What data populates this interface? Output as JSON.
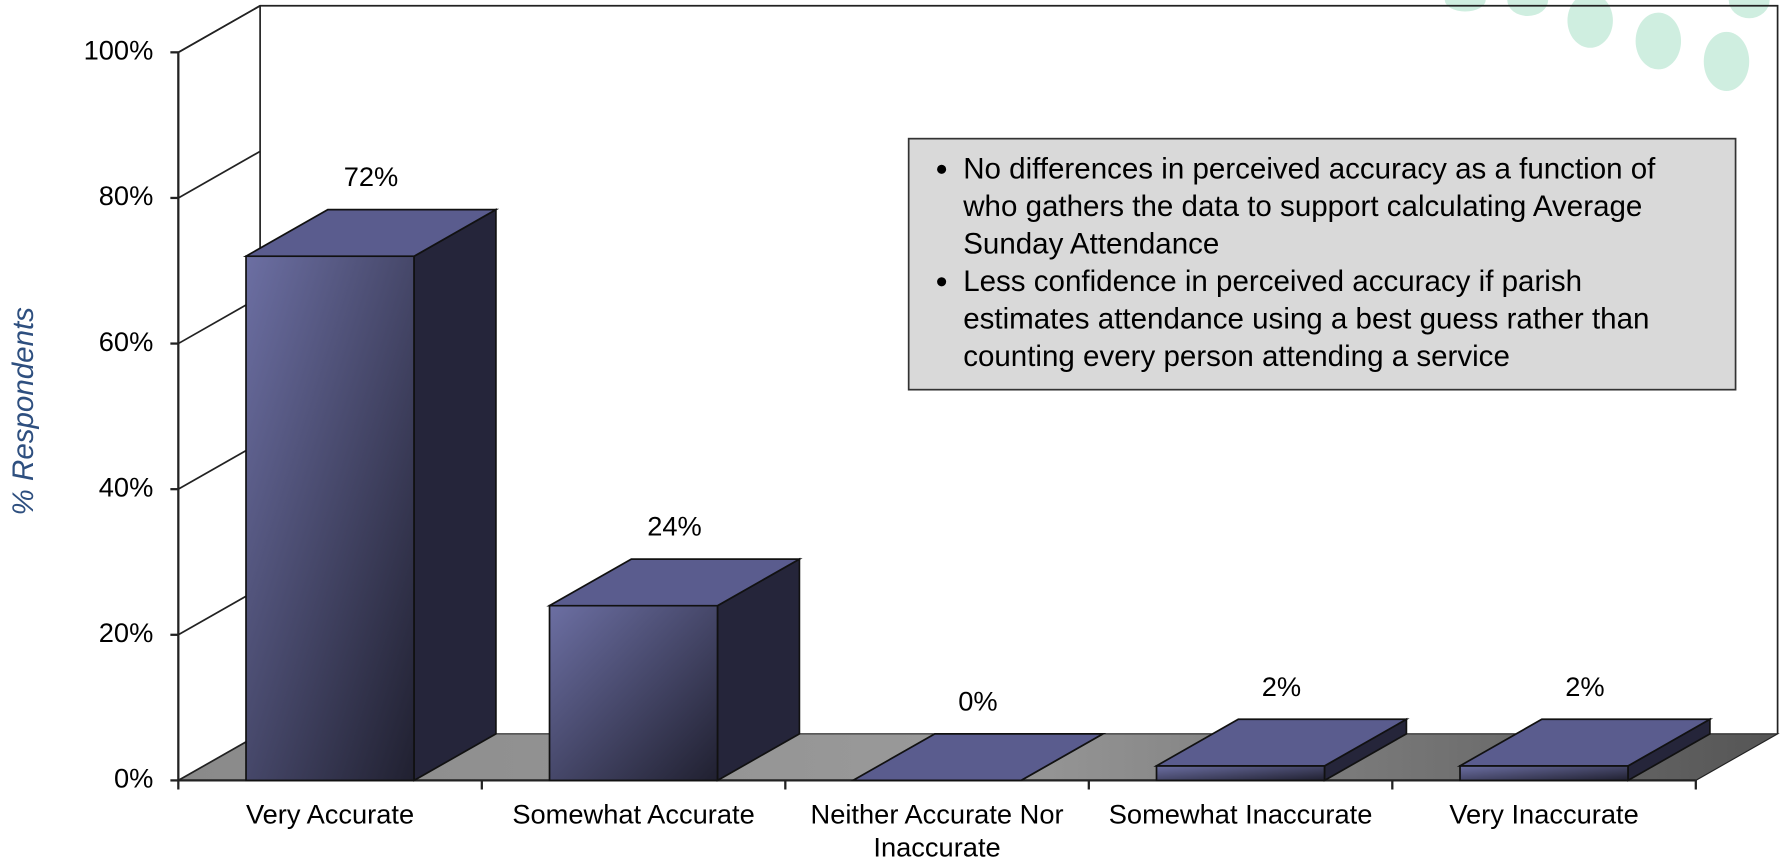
{
  "chart_data": {
    "type": "bar3d",
    "y_axis_label": "% Respondents",
    "categories": [
      "Very Accurate",
      "Somewhat Accurate",
      "Neither Accurate Nor Inaccurate",
      "Somewhat Inaccurate",
      "Very Inaccurate"
    ],
    "values": [
      72,
      24,
      0,
      2,
      2
    ],
    "value_labels": [
      "72%",
      "24%",
      "0%",
      "2%",
      "2%"
    ],
    "color": "#5a5c8e",
    "ylim": [
      0,
      100
    ],
    "yticks": [
      {
        "value": 0,
        "label": "0%"
      },
      {
        "value": 20,
        "label": "20%"
      },
      {
        "value": 40,
        "label": "40%"
      },
      {
        "value": 60,
        "label": "60%"
      },
      {
        "value": 80,
        "label": "80%"
      },
      {
        "value": 100,
        "label": "100%"
      }
    ],
    "grid": false,
    "notes": [
      "No differences in perceived accuracy  as a function of who gathers the data to support calculating Average Sunday Attendance",
      "Less confidence in perceived accuracy if parish estimates attendance using a best guess rather than counting every person attending a service"
    ]
  }
}
